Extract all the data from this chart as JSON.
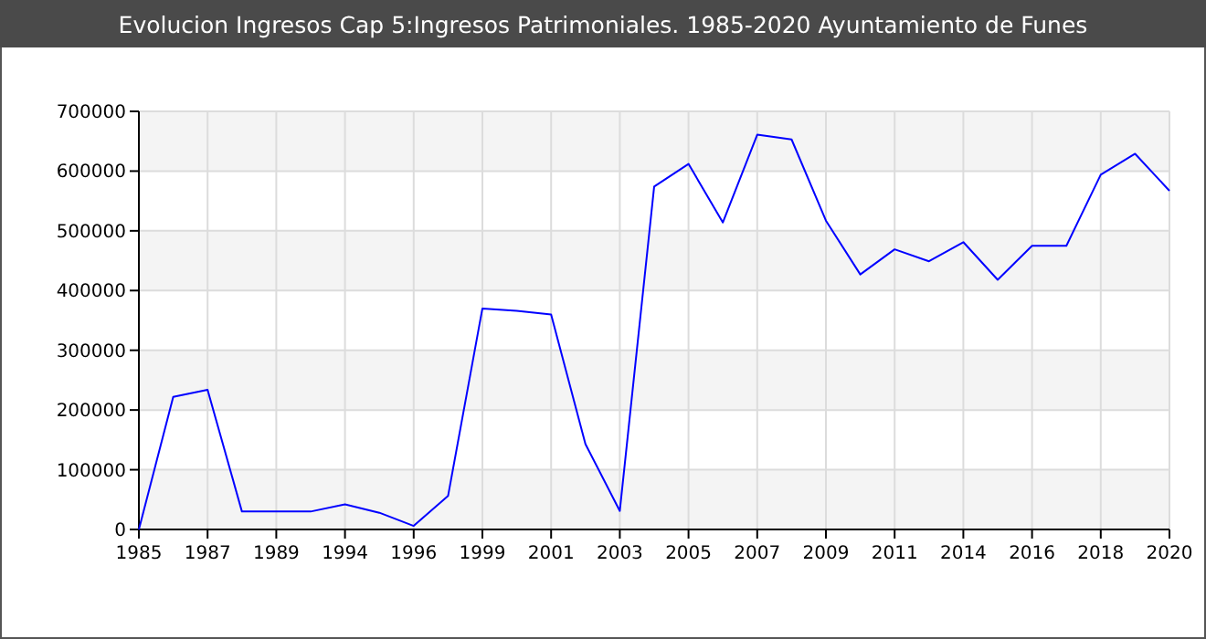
{
  "chart_data": {
    "type": "line",
    "title": "Evolucion Ingresos Cap 5:Ingresos Patrimoniales. 1985-2020 Ayuntamiento de Funes",
    "categories": [
      "1985",
      null,
      "1987",
      null,
      "1989",
      null,
      "1994",
      null,
      "1996",
      null,
      "1999",
      null,
      "2001",
      null,
      "2003",
      null,
      "2005",
      null,
      "2007",
      null,
      "2009",
      null,
      "2011",
      null,
      "2014",
      null,
      "2016",
      null,
      "2018",
      null,
      "2020"
    ],
    "series": [
      {
        "color": "#0000ff",
        "values": [
          0,
          222000,
          234000,
          30000,
          30000,
          30000,
          42000,
          28000,
          6000,
          56000,
          370000,
          366000,
          360000,
          143000,
          31000,
          574000,
          612000,
          514000,
          661000,
          653000,
          517000,
          427000,
          469000,
          449000,
          481000,
          418000,
          475000,
          475000,
          594000,
          629000,
          567000
        ]
      }
    ],
    "ylim": [
      0,
      700000
    ],
    "yticks": [
      0,
      100000,
      200000,
      300000,
      400000,
      500000,
      600000,
      700000
    ],
    "grid": true,
    "marker": "none",
    "line_style": "solid"
  }
}
